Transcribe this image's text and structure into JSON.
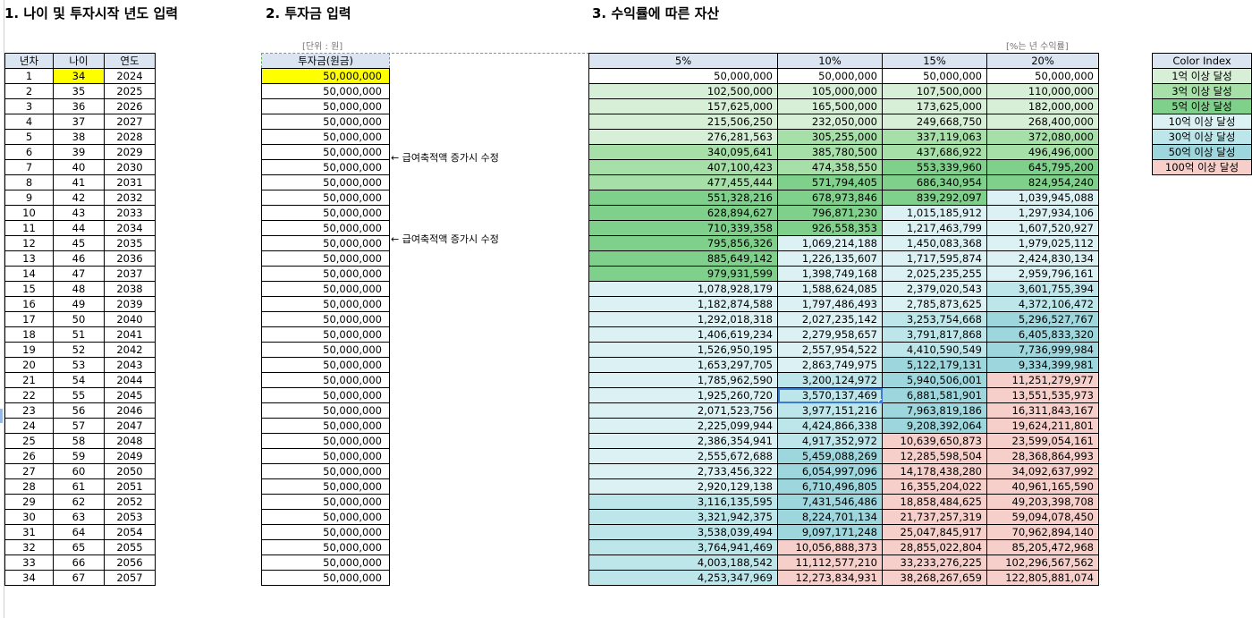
{
  "titles": {
    "section1": "1. 나이 및 투자시작 년도 입력",
    "section2": "2. 투자금 입력",
    "section3": "3. 수익률에 따른 자산"
  },
  "hints": {
    "unit": "[단위 : 원]",
    "rate": "[%는 년 수익률]"
  },
  "notes": [
    "← 급여축적액 증가시 수정",
    "← 급여축적액 증가시 수정"
  ],
  "colors": {
    "c0": "#ffffff",
    "c1": "#d6efd6",
    "c3": "#a7dfa8",
    "c5": "#7fd08a",
    "c10": "#dcf1f3",
    "c30": "#bde6ea",
    "c50": "#9dd6dc",
    "c100": "#f6cfca"
  },
  "age_table": {
    "headers": [
      "년차",
      "나이",
      "연도"
    ],
    "rows": [
      [
        "1",
        "34",
        "2024"
      ],
      [
        "2",
        "35",
        "2025"
      ],
      [
        "3",
        "36",
        "2026"
      ],
      [
        "4",
        "37",
        "2027"
      ],
      [
        "5",
        "38",
        "2028"
      ],
      [
        "6",
        "39",
        "2029"
      ],
      [
        "7",
        "40",
        "2030"
      ],
      [
        "8",
        "41",
        "2031"
      ],
      [
        "9",
        "42",
        "2032"
      ],
      [
        "10",
        "43",
        "2033"
      ],
      [
        "11",
        "44",
        "2034"
      ],
      [
        "12",
        "45",
        "2035"
      ],
      [
        "13",
        "46",
        "2036"
      ],
      [
        "14",
        "47",
        "2037"
      ],
      [
        "15",
        "48",
        "2038"
      ],
      [
        "16",
        "49",
        "2039"
      ],
      [
        "17",
        "50",
        "2040"
      ],
      [
        "18",
        "51",
        "2041"
      ],
      [
        "19",
        "52",
        "2042"
      ],
      [
        "20",
        "53",
        "2043"
      ],
      [
        "21",
        "54",
        "2044"
      ],
      [
        "22",
        "55",
        "2045"
      ],
      [
        "23",
        "56",
        "2046"
      ],
      [
        "24",
        "57",
        "2047"
      ],
      [
        "25",
        "58",
        "2048"
      ],
      [
        "26",
        "59",
        "2049"
      ],
      [
        "27",
        "60",
        "2050"
      ],
      [
        "28",
        "61",
        "2051"
      ],
      [
        "29",
        "62",
        "2052"
      ],
      [
        "30",
        "63",
        "2053"
      ],
      [
        "31",
        "64",
        "2054"
      ],
      [
        "32",
        "65",
        "2055"
      ],
      [
        "33",
        "66",
        "2056"
      ],
      [
        "34",
        "67",
        "2057"
      ]
    ]
  },
  "invest_table": {
    "header": "투자금(원금)",
    "values": [
      "50,000,000",
      "50,000,000",
      "50,000,000",
      "50,000,000",
      "50,000,000",
      "50,000,000",
      "50,000,000",
      "50,000,000",
      "50,000,000",
      "50,000,000",
      "50,000,000",
      "50,000,000",
      "50,000,000",
      "50,000,000",
      "50,000,000",
      "50,000,000",
      "50,000,000",
      "50,000,000",
      "50,000,000",
      "50,000,000",
      "50,000,000",
      "50,000,000",
      "50,000,000",
      "50,000,000",
      "50,000,000",
      "50,000,000",
      "50,000,000",
      "50,000,000",
      "50,000,000",
      "50,000,000",
      "50,000,000",
      "50,000,000",
      "50,000,000",
      "50,000,000"
    ]
  },
  "asset_table": {
    "headers": [
      "5%",
      "10%",
      "15%",
      "20%"
    ],
    "rows": [
      [
        "50,000,000",
        "50,000,000",
        "50,000,000",
        "50,000,000"
      ],
      [
        "102,500,000",
        "105,000,000",
        "107,500,000",
        "110,000,000"
      ],
      [
        "157,625,000",
        "165,500,000",
        "173,625,000",
        "182,000,000"
      ],
      [
        "215,506,250",
        "232,050,000",
        "249,668,750",
        "268,400,000"
      ],
      [
        "276,281,563",
        "305,255,000",
        "337,119,063",
        "372,080,000"
      ],
      [
        "340,095,641",
        "385,780,500",
        "437,686,922",
        "496,496,000"
      ],
      [
        "407,100,423",
        "474,358,550",
        "553,339,960",
        "645,795,200"
      ],
      [
        "477,455,444",
        "571,794,405",
        "686,340,954",
        "824,954,240"
      ],
      [
        "551,328,216",
        "678,973,846",
        "839,292,097",
        "1,039,945,088"
      ],
      [
        "628,894,627",
        "796,871,230",
        "1,015,185,912",
        "1,297,934,106"
      ],
      [
        "710,339,358",
        "926,558,353",
        "1,217,463,799",
        "1,607,520,927"
      ],
      [
        "795,856,326",
        "1,069,214,188",
        "1,450,083,368",
        "1,979,025,112"
      ],
      [
        "885,649,142",
        "1,226,135,607",
        "1,717,595,874",
        "2,424,830,134"
      ],
      [
        "979,931,599",
        "1,398,749,168",
        "2,025,235,255",
        "2,959,796,161"
      ],
      [
        "1,078,928,179",
        "1,588,624,085",
        "2,379,020,543",
        "3,601,755,394"
      ],
      [
        "1,182,874,588",
        "1,797,486,493",
        "2,785,873,625",
        "4,372,106,472"
      ],
      [
        "1,292,018,318",
        "2,027,235,142",
        "3,253,754,668",
        "5,296,527,767"
      ],
      [
        "1,406,619,234",
        "2,279,958,657",
        "3,791,817,868",
        "6,405,833,320"
      ],
      [
        "1,526,950,195",
        "2,557,954,522",
        "4,410,590,549",
        "7,736,999,984"
      ],
      [
        "1,653,297,705",
        "2,863,749,975",
        "5,122,179,131",
        "9,334,399,981"
      ],
      [
        "1,785,962,590",
        "3,200,124,972",
        "5,940,506,001",
        "11,251,279,977"
      ],
      [
        "1,925,260,720",
        "3,570,137,469",
        "6,881,581,901",
        "13,551,535,973"
      ],
      [
        "2,071,523,756",
        "3,977,151,216",
        "7,963,819,186",
        "16,311,843,167"
      ],
      [
        "2,225,099,944",
        "4,424,866,338",
        "9,208,392,064",
        "19,624,211,801"
      ],
      [
        "2,386,354,941",
        "4,917,352,972",
        "10,639,650,873",
        "23,599,054,161"
      ],
      [
        "2,555,672,688",
        "5,459,088,269",
        "12,285,598,504",
        "28,368,864,993"
      ],
      [
        "2,733,456,322",
        "6,054,997,096",
        "14,178,438,280",
        "34,092,637,992"
      ],
      [
        "2,920,129,138",
        "6,710,496,805",
        "16,355,204,022",
        "40,961,165,590"
      ],
      [
        "3,116,135,595",
        "7,431,546,486",
        "18,858,484,625",
        "49,203,398,708"
      ],
      [
        "3,321,942,375",
        "8,224,701,134",
        "21,737,257,319",
        "59,094,078,450"
      ],
      [
        "3,538,039,494",
        "9,097,171,248",
        "25,047,845,917",
        "70,962,894,140"
      ],
      [
        "3,764,941,469",
        "10,056,888,373",
        "28,855,022,804",
        "85,205,472,968"
      ],
      [
        "4,003,188,542",
        "11,112,577,210",
        "33,233,276,225",
        "102,296,567,562"
      ],
      [
        "4,253,347,969",
        "12,273,834,931",
        "38,268,267,659",
        "122,805,881,074"
      ]
    ]
  },
  "color_index": {
    "header": "Color Index",
    "items": [
      {
        "label": "1억 이상 달성",
        "color": "#d6efd6"
      },
      {
        "label": "3억 이상 달성",
        "color": "#a7dfa8"
      },
      {
        "label": "5억 이상 달성",
        "color": "#7fd08a"
      },
      {
        "label": "10억 이상 달성",
        "color": "#dcf1f3"
      },
      {
        "label": "30억 이상 달성",
        "color": "#bde6ea"
      },
      {
        "label": "50억 이상 달성",
        "color": "#9dd6dc"
      },
      {
        "label": "100억 이상 달성",
        "color": "#f6cfca"
      }
    ]
  },
  "selected_cell": {
    "row": 21,
    "col": 1
  }
}
